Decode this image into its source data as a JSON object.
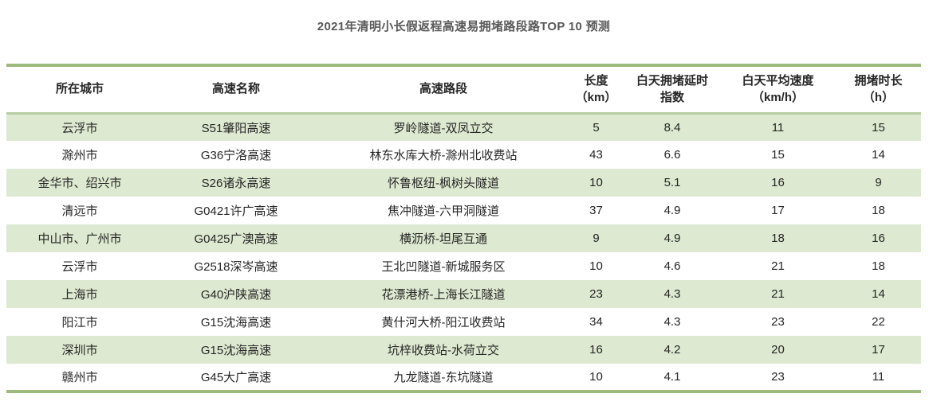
{
  "title": "2021年清明小长假返程高速易拥堵路段路TOP 10 预测",
  "colors": {
    "border_green": "#9cba7d",
    "header_separator": "#b9cda3",
    "row_stripe_green": "#dde9d0",
    "title_text": "#595959",
    "body_text": "#262626"
  },
  "table": {
    "columns": [
      {
        "key": "city",
        "line1": "所在城市",
        "line2": ""
      },
      {
        "key": "highway-name",
        "line1": "高速名称",
        "line2": ""
      },
      {
        "key": "road-section",
        "line1": "高速路段",
        "line2": ""
      },
      {
        "key": "length-km",
        "line1": "长度",
        "line2": "（km）"
      },
      {
        "key": "delay-index",
        "line1": "白天拥堵延时",
        "line2": "指数"
      },
      {
        "key": "avg-speed",
        "line1": "白天平均速度",
        "line2": "（km/h）"
      },
      {
        "key": "duration-h",
        "line1": "拥堵时长",
        "line2": "（h）"
      }
    ],
    "rows": [
      [
        "云浮市",
        "S51肇阳高速",
        "罗岭隧道-双凤立交",
        "5",
        "8.4",
        "11",
        "15"
      ],
      [
        "滁州市",
        "G36宁洛高速",
        "林东水库大桥-滁州北收费站",
        "43",
        "6.6",
        "15",
        "14"
      ],
      [
        "金华市、绍兴市",
        "S26诸永高速",
        "怀鲁枢纽-枫树头隧道",
        "10",
        "5.1",
        "16",
        "9"
      ],
      [
        "清远市",
        "G0421许广高速",
        "焦冲隧道-六甲洞隧道",
        "37",
        "4.9",
        "17",
        "18"
      ],
      [
        "中山市、广州市",
        "G0425广澳高速",
        "横沥桥-坦尾互通",
        "9",
        "4.9",
        "18",
        "16"
      ],
      [
        "云浮市",
        "G2518深岑高速",
        "王北凹隧道-新城服务区",
        "10",
        "4.6",
        "21",
        "18"
      ],
      [
        "上海市",
        "G40沪陕高速",
        "花漂港桥-上海长江隧道",
        "23",
        "4.3",
        "21",
        "14"
      ],
      [
        "阳江市",
        "G15沈海高速",
        "黄什河大桥-阳江收费站",
        "34",
        "4.3",
        "23",
        "22"
      ],
      [
        "深圳市",
        "G15沈海高速",
        "坑梓收费站-水荷立交",
        "16",
        "4.2",
        "20",
        "17"
      ],
      [
        "赣州市",
        "G45大广高速",
        "九龙隧道-东坑隧道",
        "10",
        "4.1",
        "23",
        "11"
      ]
    ]
  },
  "chart_data": {
    "type": "table",
    "title": "2021年清明小长假返程高速易拥堵路段路TOP 10 预测",
    "columns": [
      "所在城市",
      "高速名称",
      "高速路段",
      "长度（km）",
      "白天拥堵延时指数",
      "白天平均速度（km/h）",
      "拥堵时长（h）"
    ],
    "rows": [
      {
        "city": "云浮市",
        "highway": "S51肇阳高速",
        "section": "罗岭隧道-双凤立交",
        "length_km": 5,
        "delay_index": 8.4,
        "avg_speed_kmh": 11,
        "duration_h": 15
      },
      {
        "city": "滁州市",
        "highway": "G36宁洛高速",
        "section": "林东水库大桥-滁州北收费站",
        "length_km": 43,
        "delay_index": 6.6,
        "avg_speed_kmh": 15,
        "duration_h": 14
      },
      {
        "city": "金华市、绍兴市",
        "highway": "S26诸永高速",
        "section": "怀鲁枢纽-枫树头隧道",
        "length_km": 10,
        "delay_index": 5.1,
        "avg_speed_kmh": 16,
        "duration_h": 9
      },
      {
        "city": "清远市",
        "highway": "G0421许广高速",
        "section": "焦冲隧道-六甲洞隧道",
        "length_km": 37,
        "delay_index": 4.9,
        "avg_speed_kmh": 17,
        "duration_h": 18
      },
      {
        "city": "中山市、广州市",
        "highway": "G0425广澳高速",
        "section": "横沥桥-坦尾互通",
        "length_km": 9,
        "delay_index": 4.9,
        "avg_speed_kmh": 18,
        "duration_h": 16
      },
      {
        "city": "云浮市",
        "highway": "G2518深岑高速",
        "section": "王北凹隧道-新城服务区",
        "length_km": 10,
        "delay_index": 4.6,
        "avg_speed_kmh": 21,
        "duration_h": 18
      },
      {
        "city": "上海市",
        "highway": "G40沪陕高速",
        "section": "花漂港桥-上海长江隧道",
        "length_km": 23,
        "delay_index": 4.3,
        "avg_speed_kmh": 21,
        "duration_h": 14
      },
      {
        "city": "阳江市",
        "highway": "G15沈海高速",
        "section": "黄什河大桥-阳江收费站",
        "length_km": 34,
        "delay_index": 4.3,
        "avg_speed_kmh": 23,
        "duration_h": 22
      },
      {
        "city": "深圳市",
        "highway": "G15沈海高速",
        "section": "坑梓收费站-水荷立交",
        "length_km": 16,
        "delay_index": 4.2,
        "avg_speed_kmh": 20,
        "duration_h": 17
      },
      {
        "city": "赣州市",
        "highway": "G45大广高速",
        "section": "九龙隧道-东坑隧道",
        "length_km": 10,
        "delay_index": 4.1,
        "avg_speed_kmh": 23,
        "duration_h": 11
      }
    ],
    "layout": {
      "striped_rows": "odd rows light green",
      "grid": "horizontal rules top/bottom and under header only",
      "legend_position": "none"
    }
  }
}
